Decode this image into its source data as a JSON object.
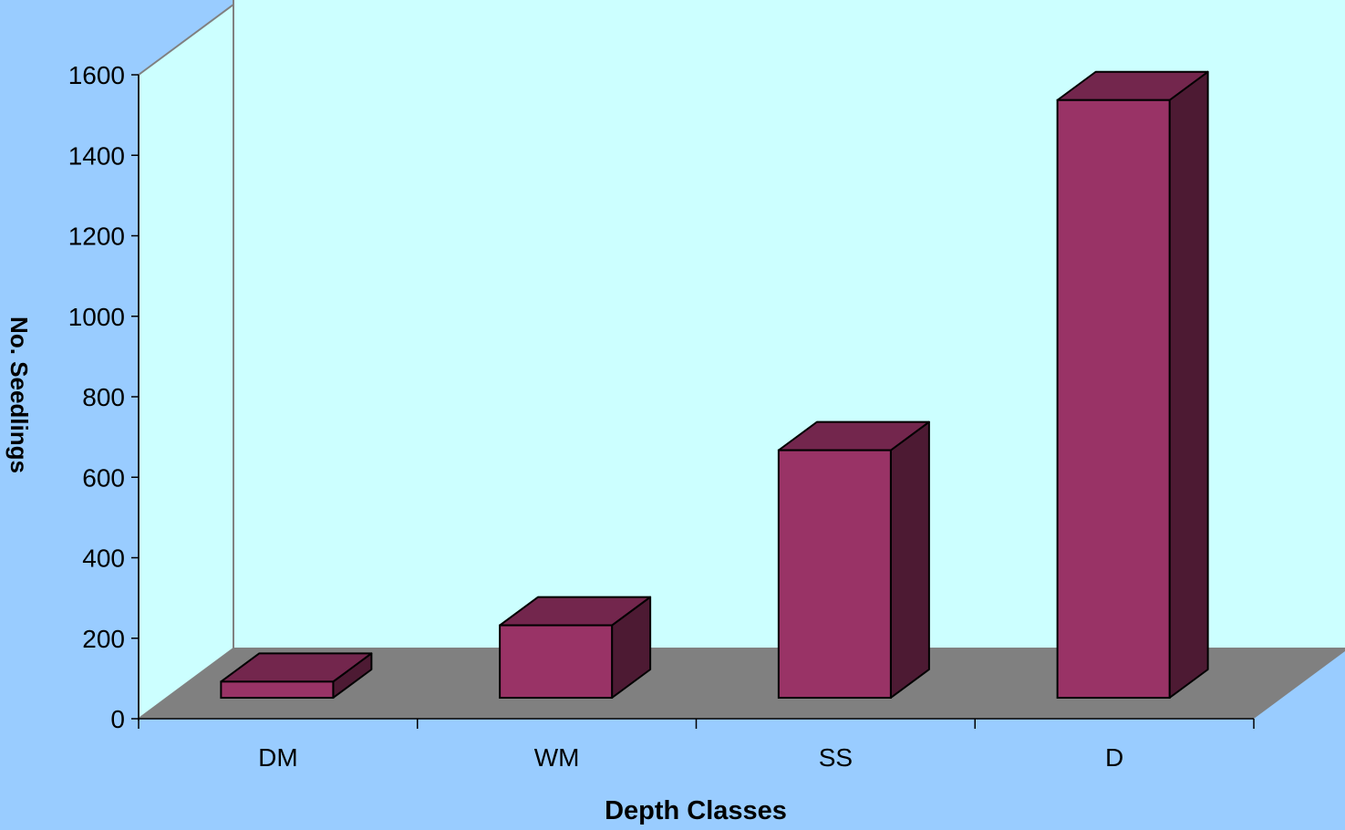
{
  "chart_data": {
    "type": "bar",
    "title": "",
    "xlabel": "Depth Classes",
    "ylabel": "No. Seedlings",
    "categories": [
      "DM",
      "WM",
      "SS",
      "D"
    ],
    "values": [
      40,
      180,
      615,
      1485
    ],
    "ylim": [
      0,
      1600
    ],
    "yticks": [
      0,
      200,
      400,
      600,
      800,
      1000,
      1200,
      1400,
      1600
    ],
    "ytick_labels": [
      "0",
      "200",
      "400",
      "600",
      "800",
      "1000",
      "1200",
      "1400",
      "1600"
    ],
    "grid": false,
    "legend": "none",
    "three_d": true,
    "colors": {
      "page_background": "#99ccff",
      "wall": "#ccffff",
      "floor": "#808080",
      "bar_front": "#993366",
      "bar_top": "#73264d",
      "bar_side": "#4d1a33",
      "axis": "#000000"
    }
  }
}
